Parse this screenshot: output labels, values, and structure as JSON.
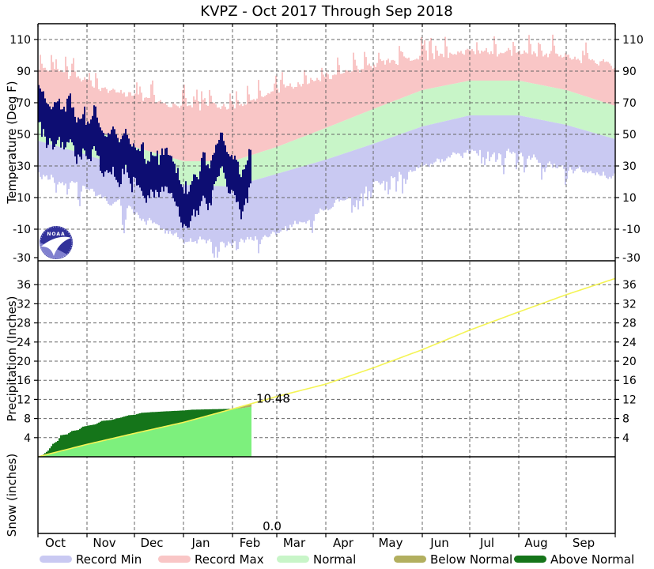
{
  "title": "KVPZ - Oct 2017 Through Sep 2018",
  "months": [
    "Oct",
    "Nov",
    "Dec",
    "Jan",
    "Feb",
    "Mar",
    "Apr",
    "May",
    "Jun",
    "Jul",
    "Aug",
    "Sep"
  ],
  "month_day_starts": [
    0,
    31,
    61,
    92,
    123,
    151,
    182,
    212,
    243,
    273,
    304,
    334,
    365
  ],
  "legend": [
    {
      "label": "Record Min",
      "color": "#c9c9f2"
    },
    {
      "label": "Record Max",
      "color": "#f9c6c6"
    },
    {
      "label": "Normal",
      "color": "#c8f5c8"
    },
    {
      "label": "Below Normal",
      "color": "#b2af5f"
    },
    {
      "label": "Above Normal",
      "color": "#15751a"
    }
  ],
  "logo": {
    "name": "noaa-logo",
    "text": "NOAA"
  },
  "chart_data": [
    {
      "type": "area",
      "panel": "temperature",
      "ylabel": "Temperature (Deg F)",
      "ylim": [
        -30,
        120
      ],
      "yticks": [
        110,
        90,
        70,
        50,
        30,
        10,
        -10,
        -30
      ],
      "grid": true,
      "observed_end_day": 135,
      "series": [
        {
          "name": "Record Max",
          "style": "jagged-band-top",
          "color": "#f9c6c6",
          "monthly": [
            88,
            78,
            68,
            62,
            62,
            72,
            82,
            89,
            94,
            97,
            97,
            94,
            89
          ]
        },
        {
          "name": "Normal Max",
          "style": "smooth",
          "color": "#c8f5c8",
          "monthly": [
            67,
            55,
            42,
            33,
            33,
            42,
            54,
            66,
            78,
            84,
            84,
            78,
            68
          ]
        },
        {
          "name": "Normal Min",
          "style": "smooth",
          "color": "#c8f5c8",
          "monthly": [
            46,
            37,
            27,
            18,
            17,
            25,
            34,
            44,
            55,
            62,
            62,
            56,
            47
          ]
        },
        {
          "name": "Record Min",
          "style": "jagged-band-bottom",
          "color": "#c9c9f2",
          "monthly": [
            30,
            20,
            5,
            -12,
            -15,
            -8,
            8,
            24,
            35,
            44,
            43,
            33,
            28
          ]
        },
        {
          "name": "Observed Daily Mean",
          "style": "daily-range-bars",
          "color": "#0d0d72",
          "half_range": 8.5,
          "anchors": [
            [
              0,
              72
            ],
            [
              4,
              62
            ],
            [
              8,
              56
            ],
            [
              12,
              62
            ],
            [
              16,
              52
            ],
            [
              20,
              58
            ],
            [
              24,
              48
            ],
            [
              28,
              52
            ],
            [
              31,
              45
            ],
            [
              35,
              52
            ],
            [
              39,
              44
            ],
            [
              43,
              38
            ],
            [
              47,
              44
            ],
            [
              51,
              36
            ],
            [
              55,
              42
            ],
            [
              58,
              34
            ],
            [
              61,
              32
            ],
            [
              64,
              26
            ],
            [
              68,
              20
            ],
            [
              72,
              28
            ],
            [
              76,
              22
            ],
            [
              80,
              30
            ],
            [
              84,
              24
            ],
            [
              88,
              14
            ],
            [
              92,
              4
            ],
            [
              95,
              2
            ],
            [
              98,
              16
            ],
            [
              101,
              10
            ],
            [
              104,
              22
            ],
            [
              107,
              14
            ],
            [
              110,
              26
            ],
            [
              113,
              34
            ],
            [
              116,
              40
            ],
            [
              119,
              30
            ],
            [
              122,
              26
            ],
            [
              125,
              18
            ],
            [
              128,
              14
            ],
            [
              131,
              22
            ],
            [
              135,
              30
            ]
          ]
        }
      ]
    },
    {
      "type": "line",
      "panel": "precipitation",
      "ylabel": "Precipitation (Inches)",
      "ylim": [
        0,
        41
      ],
      "yticks": [
        36,
        32,
        28,
        24,
        20,
        16,
        12,
        8,
        4
      ],
      "grid": true,
      "observed_end_day": 135,
      "normal_cumulative_monthly": [
        0,
        2.6,
        4.9,
        7.2,
        10.0,
        12.6,
        15.2,
        18.6,
        22.4,
        26.5,
        30.3,
        33.9,
        37.3
      ],
      "normal_line_color": "#f4f455",
      "under_fill_color": "#7df07d",
      "above_normal_color": "#15751a",
      "below_normal_color": "#b2af5f",
      "actual_cumulative_anchors": [
        [
          0,
          0
        ],
        [
          3,
          0.5
        ],
        [
          6,
          1.3
        ],
        [
          9,
          2.7
        ],
        [
          12,
          3.3
        ],
        [
          14,
          4.5
        ],
        [
          18,
          4.7
        ],
        [
          21,
          5.4
        ],
        [
          25,
          5.6
        ],
        [
          28,
          6.3
        ],
        [
          31,
          6.5
        ],
        [
          36,
          6.8
        ],
        [
          40,
          7.5
        ],
        [
          46,
          7.7
        ],
        [
          52,
          8.2
        ],
        [
          57,
          8.7
        ],
        [
          61,
          8.8
        ],
        [
          65,
          9.2
        ],
        [
          72,
          9.35
        ],
        [
          80,
          9.5
        ],
        [
          86,
          9.6
        ],
        [
          92,
          9.7
        ],
        [
          97,
          9.85
        ],
        [
          104,
          9.9
        ],
        [
          110,
          9.95
        ],
        [
          118,
          10.0
        ],
        [
          123,
          10.05
        ],
        [
          128,
          10.15
        ],
        [
          131,
          10.3
        ],
        [
          135,
          10.48
        ]
      ],
      "annotation": {
        "text": "10.48",
        "value": 10.48,
        "day": 135
      }
    },
    {
      "type": "area",
      "panel": "snow",
      "ylabel": "Snow (inches)",
      "yticks": [],
      "grid": true,
      "annotation": {
        "text": "0.0",
        "value": 0.0,
        "day": 148
      }
    }
  ]
}
